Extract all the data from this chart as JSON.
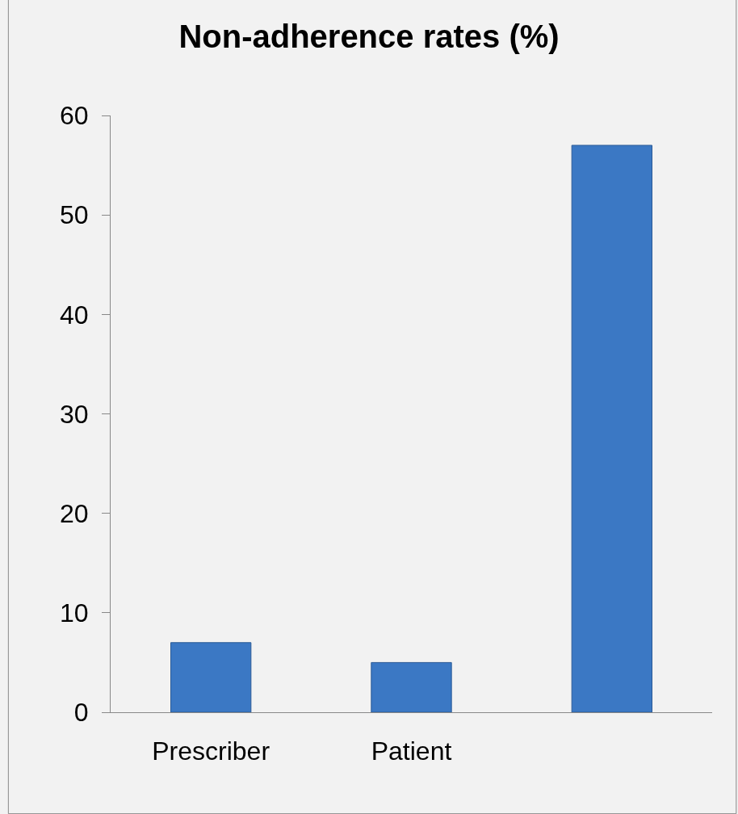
{
  "chart_data": {
    "type": "bar",
    "title": "Non-adherence rates (%)",
    "categories": [
      "Prescriber",
      "Patient",
      null
    ],
    "values": [
      7,
      5,
      57
    ],
    "color": "#3b78c4",
    "ylim": [
      0,
      60
    ],
    "yticks": [
      0,
      10,
      20,
      30,
      40,
      50,
      60
    ],
    "grid": false
  }
}
